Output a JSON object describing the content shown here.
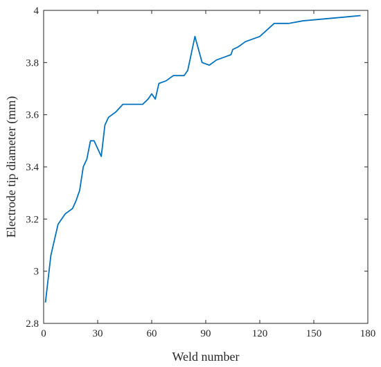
{
  "chart_data": {
    "type": "line",
    "title": "",
    "xlabel": "Weld number",
    "ylabel": "Electrode tip diameter (mm)",
    "xlim": [
      0,
      180
    ],
    "ylim": [
      2.8,
      4.0
    ],
    "x_ticks": [
      0,
      30,
      60,
      90,
      120,
      150,
      180
    ],
    "y_ticks": [
      2.8,
      3.0,
      3.2,
      3.4,
      3.6,
      3.8,
      4.0
    ],
    "x_tick_labels": [
      "0",
      "30",
      "60",
      "90",
      "120",
      "150",
      "180"
    ],
    "y_tick_labels": [
      "2.8",
      "3",
      "3.2",
      "3.4",
      "3.6",
      "3.8",
      "4"
    ],
    "grid": false,
    "line_color": "#0072BD",
    "series": [
      {
        "x": [
          1,
          4,
          8,
          12,
          16,
          18,
          20,
          22,
          24,
          26,
          28,
          32,
          34,
          36,
          40,
          44,
          48,
          52,
          55,
          58,
          60,
          62,
          64,
          68,
          72,
          76,
          78,
          80,
          84,
          88,
          92,
          96,
          100,
          104,
          105,
          108,
          112,
          116,
          120,
          128,
          136,
          144,
          152,
          160,
          168,
          176
        ],
        "y": [
          2.88,
          3.06,
          3.18,
          3.22,
          3.24,
          3.27,
          3.31,
          3.4,
          3.43,
          3.5,
          3.5,
          3.44,
          3.56,
          3.59,
          3.61,
          3.64,
          3.64,
          3.64,
          3.64,
          3.66,
          3.68,
          3.66,
          3.72,
          3.73,
          3.75,
          3.75,
          3.75,
          3.77,
          3.9,
          3.8,
          3.79,
          3.81,
          3.82,
          3.83,
          3.85,
          3.86,
          3.88,
          3.89,
          3.9,
          3.95,
          3.95,
          3.96,
          3.965,
          3.97,
          3.975,
          3.98
        ]
      }
    ]
  }
}
